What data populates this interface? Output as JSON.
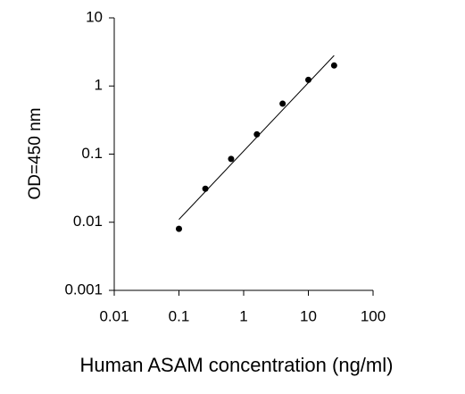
{
  "chart_data": {
    "type": "scatter",
    "x_label": "Human ASAM concentration (ng/ml)",
    "y_label": "OD=450 nm",
    "x": [
      0.1,
      0.256,
      0.64,
      1.6,
      4,
      10,
      25
    ],
    "values": [
      0.008,
      0.031,
      0.085,
      0.195,
      0.55,
      1.23,
      2.0
    ],
    "color": "#000000",
    "fit": {
      "x": [
        0.1,
        25
      ],
      "y": [
        0.011,
        2.8
      ],
      "color": "#000000"
    },
    "xlog": true,
    "ylog": true,
    "xlim": [
      0.01,
      100
    ],
    "ylim": [
      0.001,
      10
    ],
    "xticks": [
      0.01,
      0.1,
      1,
      10,
      100
    ],
    "yticks": [
      0.001,
      0.01,
      0.1,
      1,
      10
    ]
  }
}
